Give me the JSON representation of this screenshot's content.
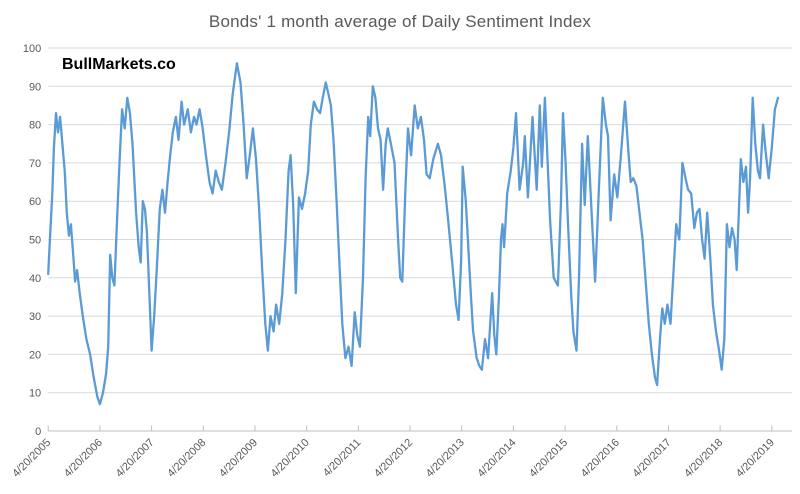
{
  "chart_data": {
    "type": "line",
    "title": "Bonds' 1 month average of Daily Sentiment Index",
    "watermark": "BullMarkets.co",
    "xlabel": "",
    "ylabel": "",
    "ylim": [
      0,
      100
    ],
    "xlim": [
      2005.3,
      2019.69
    ],
    "grid": true,
    "legend_position": "none",
    "y_ticks": [
      0,
      10,
      20,
      30,
      40,
      50,
      60,
      70,
      80,
      90,
      100
    ],
    "x_ticks": [
      {
        "label": "4/20/2005",
        "year": 2005.3
      },
      {
        "label": "4/20/2006",
        "year": 2006.3
      },
      {
        "label": "4/20/2007",
        "year": 2007.3
      },
      {
        "label": "4/20/2008",
        "year": 2008.3
      },
      {
        "label": "4/20/2009",
        "year": 2009.3
      },
      {
        "label": "4/20/2010",
        "year": 2010.3
      },
      {
        "label": "4/20/2011",
        "year": 2011.3
      },
      {
        "label": "4/20/2012",
        "year": 2012.3
      },
      {
        "label": "4/20/2013",
        "year": 2013.3
      },
      {
        "label": "4/20/2014",
        "year": 2014.3
      },
      {
        "label": "4/20/2015",
        "year": 2015.3
      },
      {
        "label": "4/20/2016",
        "year": 2016.3
      },
      {
        "label": "4/20/2017",
        "year": 2017.3
      },
      {
        "label": "4/20/2018",
        "year": 2018.3
      },
      {
        "label": "4/20/2019",
        "year": 2019.3
      }
    ],
    "colors": {
      "line": "#5B9BD5",
      "grid": "#D9D9D9",
      "axis": "#BFBFBF",
      "labels": "#595959",
      "title": "#595959",
      "watermark": "#000000"
    },
    "points": [
      [
        2005.3,
        41
      ],
      [
        2005.34,
        52
      ],
      [
        2005.38,
        62
      ],
      [
        2005.41,
        74
      ],
      [
        2005.45,
        83
      ],
      [
        2005.49,
        78
      ],
      [
        2005.53,
        82
      ],
      [
        2005.58,
        74
      ],
      [
        2005.62,
        68
      ],
      [
        2005.66,
        57
      ],
      [
        2005.7,
        51
      ],
      [
        2005.74,
        54
      ],
      [
        2005.79,
        45
      ],
      [
        2005.82,
        39
      ],
      [
        2005.86,
        42
      ],
      [
        2005.91,
        36
      ],
      [
        2005.97,
        30
      ],
      [
        2006.04,
        24
      ],
      [
        2006.11,
        20
      ],
      [
        2006.18,
        14
      ],
      [
        2006.25,
        9
      ],
      [
        2006.3,
        7
      ],
      [
        2006.36,
        10
      ],
      [
        2006.42,
        15
      ],
      [
        2006.46,
        22
      ],
      [
        2006.5,
        46
      ],
      [
        2006.54,
        40
      ],
      [
        2006.58,
        38
      ],
      [
        2006.64,
        58
      ],
      [
        2006.69,
        73
      ],
      [
        2006.73,
        84
      ],
      [
        2006.78,
        79
      ],
      [
        2006.83,
        87
      ],
      [
        2006.88,
        83
      ],
      [
        2006.93,
        75
      ],
      [
        2007.0,
        57
      ],
      [
        2007.05,
        48
      ],
      [
        2007.09,
        44
      ],
      [
        2007.13,
        60
      ],
      [
        2007.17,
        58
      ],
      [
        2007.21,
        52
      ],
      [
        2007.26,
        35
      ],
      [
        2007.3,
        21
      ],
      [
        2007.35,
        30
      ],
      [
        2007.4,
        42
      ],
      [
        2007.46,
        58
      ],
      [
        2007.51,
        63
      ],
      [
        2007.56,
        57
      ],
      [
        2007.61,
        65
      ],
      [
        2007.66,
        72
      ],
      [
        2007.71,
        78
      ],
      [
        2007.77,
        82
      ],
      [
        2007.82,
        76
      ],
      [
        2007.88,
        86
      ],
      [
        2007.93,
        80
      ],
      [
        2008.0,
        84
      ],
      [
        2008.06,
        78
      ],
      [
        2008.12,
        82
      ],
      [
        2008.17,
        80
      ],
      [
        2008.23,
        84
      ],
      [
        2008.29,
        79
      ],
      [
        2008.35,
        72
      ],
      [
        2008.42,
        65
      ],
      [
        2008.48,
        62
      ],
      [
        2008.54,
        68
      ],
      [
        2008.6,
        65
      ],
      [
        2008.66,
        63
      ],
      [
        2008.73,
        70
      ],
      [
        2008.8,
        78
      ],
      [
        2008.87,
        88
      ],
      [
        2008.95,
        96
      ],
      [
        2009.02,
        91
      ],
      [
        2009.08,
        80
      ],
      [
        2009.14,
        66
      ],
      [
        2009.2,
        72
      ],
      [
        2009.26,
        79
      ],
      [
        2009.32,
        71
      ],
      [
        2009.38,
        58
      ],
      [
        2009.44,
        42
      ],
      [
        2009.5,
        28
      ],
      [
        2009.55,
        21
      ],
      [
        2009.6,
        30
      ],
      [
        2009.66,
        26
      ],
      [
        2009.71,
        33
      ],
      [
        2009.77,
        28
      ],
      [
        2009.83,
        36
      ],
      [
        2009.89,
        50
      ],
      [
        2009.95,
        68
      ],
      [
        2009.99,
        72
      ],
      [
        2010.04,
        59
      ],
      [
        2010.09,
        36
      ],
      [
        2010.15,
        61
      ],
      [
        2010.21,
        58
      ],
      [
        2010.27,
        62
      ],
      [
        2010.33,
        68
      ],
      [
        2010.38,
        80
      ],
      [
        2010.44,
        86
      ],
      [
        2010.5,
        84
      ],
      [
        2010.56,
        83
      ],
      [
        2010.61,
        87
      ],
      [
        2010.67,
        91
      ],
      [
        2010.72,
        88
      ],
      [
        2010.77,
        85
      ],
      [
        2010.82,
        76
      ],
      [
        2010.88,
        60
      ],
      [
        2010.93,
        45
      ],
      [
        2010.99,
        28
      ],
      [
        2011.05,
        19
      ],
      [
        2011.11,
        22
      ],
      [
        2011.17,
        17
      ],
      [
        2011.23,
        31
      ],
      [
        2011.28,
        25
      ],
      [
        2011.33,
        22
      ],
      [
        2011.39,
        40
      ],
      [
        2011.44,
        66
      ],
      [
        2011.49,
        82
      ],
      [
        2011.53,
        77
      ],
      [
        2011.58,
        90
      ],
      [
        2011.63,
        87
      ],
      [
        2011.68,
        79
      ],
      [
        2011.73,
        76
      ],
      [
        2011.78,
        63
      ],
      [
        2011.83,
        75
      ],
      [
        2011.87,
        79
      ],
      [
        2011.93,
        75
      ],
      [
        2012.0,
        70
      ],
      [
        2012.07,
        50
      ],
      [
        2012.11,
        40
      ],
      [
        2012.15,
        39
      ],
      [
        2012.21,
        63
      ],
      [
        2012.26,
        79
      ],
      [
        2012.32,
        72
      ],
      [
        2012.39,
        85
      ],
      [
        2012.45,
        79
      ],
      [
        2012.51,
        82
      ],
      [
        2012.57,
        76
      ],
      [
        2012.62,
        67
      ],
      [
        2012.68,
        66
      ],
      [
        2012.75,
        71
      ],
      [
        2012.84,
        75
      ],
      [
        2012.9,
        72
      ],
      [
        2012.97,
        64
      ],
      [
        2013.03,
        56
      ],
      [
        2013.13,
        42
      ],
      [
        2013.19,
        33
      ],
      [
        2013.24,
        29
      ],
      [
        2013.29,
        45
      ],
      [
        2013.32,
        69
      ],
      [
        2013.38,
        60
      ],
      [
        2013.42,
        50
      ],
      [
        2013.48,
        35
      ],
      [
        2013.52,
        26
      ],
      [
        2013.59,
        19
      ],
      [
        2013.64,
        17
      ],
      [
        2013.69,
        16
      ],
      [
        2013.75,
        24
      ],
      [
        2013.81,
        19
      ],
      [
        2013.86,
        30
      ],
      [
        2013.89,
        36
      ],
      [
        2013.93,
        25
      ],
      [
        2013.97,
        20
      ],
      [
        2014.02,
        35
      ],
      [
        2014.06,
        50
      ],
      [
        2014.09,
        54
      ],
      [
        2014.12,
        48
      ],
      [
        2014.18,
        62
      ],
      [
        2014.25,
        68
      ],
      [
        2014.3,
        74
      ],
      [
        2014.35,
        83
      ],
      [
        2014.42,
        63
      ],
      [
        2014.49,
        70
      ],
      [
        2014.52,
        77
      ],
      [
        2014.58,
        61
      ],
      [
        2014.67,
        82
      ],
      [
        2014.75,
        63
      ],
      [
        2014.81,
        85
      ],
      [
        2014.85,
        69
      ],
      [
        2014.91,
        87
      ],
      [
        2015.01,
        55
      ],
      [
        2015.08,
        40
      ],
      [
        2015.16,
        38
      ],
      [
        2015.22,
        60
      ],
      [
        2015.26,
        83
      ],
      [
        2015.31,
        70
      ],
      [
        2015.36,
        53
      ],
      [
        2015.42,
        35
      ],
      [
        2015.46,
        26
      ],
      [
        2015.52,
        21
      ],
      [
        2015.57,
        40
      ],
      [
        2015.63,
        75
      ],
      [
        2015.68,
        59
      ],
      [
        2015.74,
        77
      ],
      [
        2015.82,
        55
      ],
      [
        2015.88,
        39
      ],
      [
        2015.95,
        62
      ],
      [
        2016.03,
        87
      ],
      [
        2016.09,
        80
      ],
      [
        2016.13,
        77
      ],
      [
        2016.18,
        55
      ],
      [
        2016.25,
        67
      ],
      [
        2016.31,
        61
      ],
      [
        2016.38,
        72
      ],
      [
        2016.46,
        86
      ],
      [
        2016.52,
        74
      ],
      [
        2016.57,
        65
      ],
      [
        2016.62,
        66
      ],
      [
        2016.68,
        64
      ],
      [
        2016.74,
        57
      ],
      [
        2016.8,
        50
      ],
      [
        2016.86,
        39
      ],
      [
        2016.92,
        28
      ],
      [
        2016.98,
        20
      ],
      [
        2017.04,
        14
      ],
      [
        2017.08,
        12
      ],
      [
        2017.14,
        25
      ],
      [
        2017.18,
        32
      ],
      [
        2017.23,
        28
      ],
      [
        2017.28,
        33
      ],
      [
        2017.34,
        28
      ],
      [
        2017.4,
        42
      ],
      [
        2017.45,
        54
      ],
      [
        2017.51,
        50
      ],
      [
        2017.57,
        70
      ],
      [
        2017.63,
        66
      ],
      [
        2017.68,
        63
      ],
      [
        2017.74,
        62
      ],
      [
        2017.8,
        53
      ],
      [
        2017.85,
        57
      ],
      [
        2017.9,
        58
      ],
      [
        2017.95,
        50
      ],
      [
        2018.0,
        45
      ],
      [
        2018.05,
        57
      ],
      [
        2018.11,
        45
      ],
      [
        2018.16,
        33
      ],
      [
        2018.22,
        26
      ],
      [
        2018.28,
        21
      ],
      [
        2018.33,
        16
      ],
      [
        2018.38,
        24
      ],
      [
        2018.43,
        54
      ],
      [
        2018.48,
        48
      ],
      [
        2018.53,
        53
      ],
      [
        2018.58,
        50
      ],
      [
        2018.62,
        42
      ],
      [
        2018.7,
        71
      ],
      [
        2018.75,
        65
      ],
      [
        2018.8,
        69
      ],
      [
        2018.84,
        57
      ],
      [
        2018.88,
        66
      ],
      [
        2018.93,
        87
      ],
      [
        2018.98,
        75
      ],
      [
        2019.03,
        68
      ],
      [
        2019.07,
        66
      ],
      [
        2019.13,
        80
      ],
      [
        2019.18,
        73
      ],
      [
        2019.24,
        66
      ],
      [
        2019.3,
        74
      ],
      [
        2019.36,
        84
      ],
      [
        2019.42,
        87
      ]
    ]
  }
}
